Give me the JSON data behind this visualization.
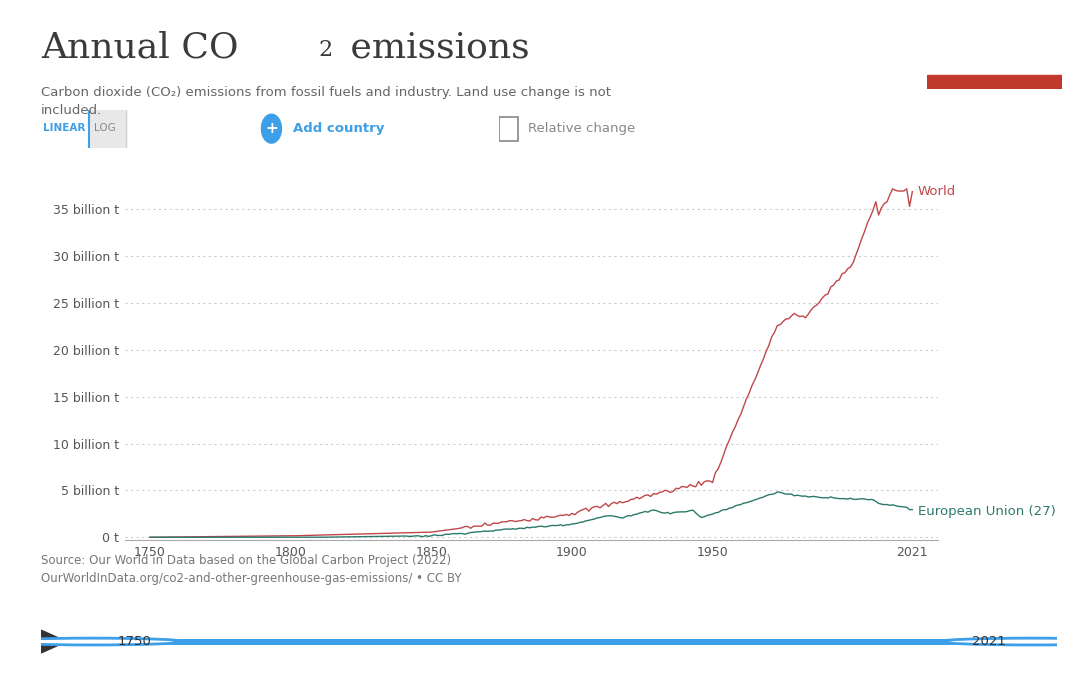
{
  "title_part1": "Annual CO",
  "title_sub": "2",
  "title_part2": " emissions",
  "subtitle": "Carbon dioxide (CO₂) emissions from fossil fuels and industry. Land use change is not\nincluded.",
  "source_text": "Source: Our World in Data based on the Global Carbon Project (2022)\nOurWorldInData.org/co2-and-other-greenhouse-gas-emissions/ • CC BY",
  "title_color": "#3a3a3a",
  "subtitle_color": "#666666",
  "bg_color": "#ffffff",
  "plot_bg_color": "#ffffff",
  "world_color": "#c0474a",
  "eu_color": "#2d7a6b",
  "grid_color": "#cccccc",
  "ytick_labels": [
    "0 t",
    "5 billion t",
    "10 billion t",
    "15 billion t",
    "20 billion t",
    "25 billion t",
    "30 billion t",
    "35 billion t"
  ],
  "ytick_values": [
    0,
    5000000000,
    10000000000,
    15000000000,
    20000000000,
    25000000000,
    30000000000,
    35000000000
  ],
  "xtick_labels": [
    "1750",
    "1800",
    "1850",
    "1900",
    "1950",
    "2021"
  ],
  "xtick_values": [
    1750,
    1800,
    1850,
    1900,
    1950,
    2021
  ],
  "xlim": [
    1741,
    2030
  ],
  "ylim": [
    -300000000.0,
    37500000000.0
  ],
  "world_label": "World",
  "eu_label": "European Union (27)",
  "owid_bg": "#1d3557",
  "owid_red": "#c0392b",
  "slider_color": "#3d9fe8",
  "linear_btn_color": "#3d9fe8",
  "add_country_color": "#3d9fe8"
}
